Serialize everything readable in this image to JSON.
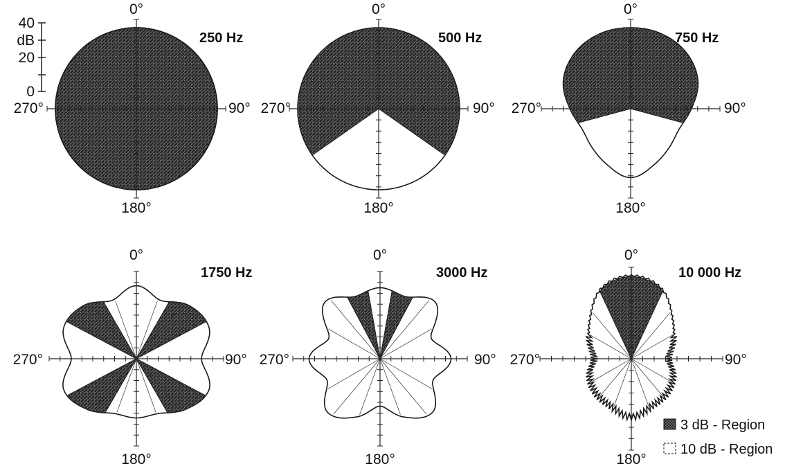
{
  "chart_data": {
    "type": "polar-directivity",
    "angle_labels": [
      "0°",
      "90°",
      "180°",
      "270°"
    ],
    "scale": {
      "ticks": [
        "40",
        "20",
        "0"
      ],
      "unit": "dB",
      "range_db": [
        0,
        40
      ]
    },
    "legend": [
      {
        "label": "3 dB - Region",
        "pattern": "dark-hatch"
      },
      {
        "label": "10 dB - Region",
        "pattern": "light"
      }
    ],
    "panels": [
      {
        "title": "250 Hz",
        "radius_db_by_angle": [
          40,
          40,
          40,
          40,
          40,
          40,
          40,
          40,
          40,
          40,
          40,
          40,
          40,
          40,
          40,
          40
        ],
        "region_3db_deg": [
          0,
          360
        ],
        "region_10db_deg": [
          0,
          360
        ]
      },
      {
        "title": "500 Hz",
        "radius_db_by_angle": [
          40,
          40,
          40,
          40,
          40,
          40,
          40,
          40,
          40,
          40,
          40,
          40,
          40,
          40,
          40,
          40
        ],
        "region_3db_deg": [
          [
            -125,
            125
          ]
        ],
        "region_10db_deg": [
          0,
          360
        ]
      },
      {
        "title": "750 Hz",
        "radius_db_by_angle": [
          40,
          40,
          39,
          36,
          30,
          26,
          27,
          30,
          34,
          30,
          27,
          26,
          30,
          36,
          39,
          40
        ],
        "region_3db_deg": [
          [
            -105,
            105
          ]
        ],
        "region_10db_deg": [
          0,
          360
        ]
      },
      {
        "title": "1750 Hz",
        "radius_db_by_angle": [
          37,
          32,
          38,
          40,
          33,
          40,
          36,
          30,
          30,
          30,
          36,
          40,
          33,
          40,
          38,
          32
        ],
        "region_3db_deg": [
          [
            -62,
            -30
          ],
          [
            30,
            62
          ],
          [
            118,
            150
          ],
          [
            -150,
            -118
          ]
        ],
        "region_10db_deg": [
          0,
          360
        ]
      },
      {
        "title": "3000 Hz",
        "radius_db_by_angle": [
          36,
          34,
          40,
          28,
          36,
          29,
          38,
          32,
          24,
          32,
          38,
          29,
          36,
          28,
          40,
          34
        ],
        "region_3db_deg": [
          [
            -28,
            -10
          ],
          [
            10,
            28
          ]
        ],
        "region_10db_deg": [
          0,
          360
        ]
      },
      {
        "title": "10 000 Hz",
        "radius_db_by_angle": [
          40,
          37,
          28,
          22,
          18,
          22,
          24,
          25,
          28,
          25,
          24,
          22,
          18,
          22,
          28,
          37
        ],
        "region_3db_deg": [
          [
            -25,
            25
          ]
        ],
        "region_10db_deg": [
          0,
          360
        ]
      }
    ]
  }
}
